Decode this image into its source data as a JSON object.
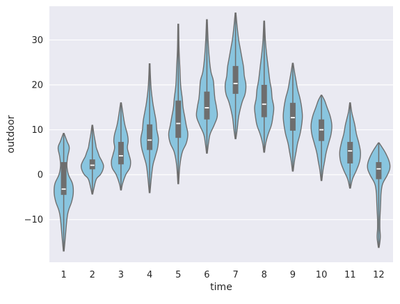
{
  "chart_data": {
    "type": "violin",
    "xlabel": "time",
    "ylabel": "outdoor",
    "categories": [
      "1",
      "2",
      "3",
      "4",
      "5",
      "6",
      "7",
      "8",
      "9",
      "10",
      "11",
      "12"
    ],
    "ylim": [
      -19.5,
      37.5
    ],
    "yticks": [
      -10,
      0,
      10,
      20,
      30
    ],
    "grid": true,
    "colors": {
      "background": "#eaeaf2",
      "grid": "#ffffff",
      "violin_fill": "#89c5df",
      "violin_edge": "#6e6e6e",
      "box": "#6e6e6e",
      "median": "#ffffff"
    },
    "series": [
      {
        "category": "1",
        "min": -17,
        "q1": -4.5,
        "median": -3.2,
        "q3": 2.8,
        "max": 9.2,
        "profile": [
          [
            -17,
            0.5
          ],
          [
            -14,
            2
          ],
          [
            -10,
            4
          ],
          [
            -8,
            6
          ],
          [
            -6,
            10
          ],
          [
            -4,
            12
          ],
          [
            -2,
            11
          ],
          [
            0,
            6
          ],
          [
            2,
            4
          ],
          [
            4,
            5
          ],
          [
            6,
            7
          ],
          [
            7.5,
            4
          ],
          [
            9.2,
            0.5
          ]
        ]
      },
      {
        "category": "2",
        "min": -4.3,
        "q1": 1.2,
        "median": 2.1,
        "q3": 3.4,
        "max": 11,
        "profile": [
          [
            -4.3,
            0.5
          ],
          [
            -3,
            2
          ],
          [
            -1,
            5
          ],
          [
            0,
            10
          ],
          [
            1,
            13
          ],
          [
            2,
            14
          ],
          [
            3,
            12
          ],
          [
            4,
            9
          ],
          [
            5,
            7
          ],
          [
            6,
            5
          ],
          [
            7,
            4
          ],
          [
            9,
            2
          ],
          [
            11,
            0.5
          ]
        ]
      },
      {
        "category": "3",
        "min": -3.4,
        "q1": 2.3,
        "median": 4.2,
        "q3": 7.3,
        "max": 16,
        "profile": [
          [
            -3.4,
            0.5
          ],
          [
            -2,
            2
          ],
          [
            0,
            6
          ],
          [
            1.5,
            11
          ],
          [
            3,
            12
          ],
          [
            4.5,
            10
          ],
          [
            6,
            8
          ],
          [
            7.5,
            9
          ],
          [
            9,
            8
          ],
          [
            11,
            5
          ],
          [
            13,
            3
          ],
          [
            16,
            0.5
          ]
        ]
      },
      {
        "category": "4",
        "min": -4,
        "q1": 5.5,
        "median": 7.7,
        "q3": 11.2,
        "max": 24.7,
        "profile": [
          [
            -4,
            0.5
          ],
          [
            -1,
            2
          ],
          [
            2,
            4
          ],
          [
            4,
            7
          ],
          [
            6,
            10
          ],
          [
            8,
            11
          ],
          [
            10,
            9
          ],
          [
            12,
            8
          ],
          [
            14,
            6
          ],
          [
            16,
            4
          ],
          [
            19,
            2
          ],
          [
            22,
            1
          ],
          [
            24.7,
            0.5
          ]
        ]
      },
      {
        "category": "5",
        "min": -2,
        "q1": 8.2,
        "median": 11.4,
        "q3": 16.5,
        "max": 33.5,
        "profile": [
          [
            -2,
            0.5
          ],
          [
            2,
            2
          ],
          [
            5,
            5
          ],
          [
            7,
            10
          ],
          [
            9,
            12
          ],
          [
            11,
            10
          ],
          [
            13,
            8
          ],
          [
            15,
            6
          ],
          [
            17,
            5
          ],
          [
            20,
            3
          ],
          [
            24,
            2
          ],
          [
            28,
            1
          ],
          [
            33.5,
            0.5
          ]
        ]
      },
      {
        "category": "6",
        "min": 4.8,
        "q1": 12.3,
        "median": 14.9,
        "q3": 18.5,
        "max": 34.5,
        "profile": [
          [
            4.8,
            0.5
          ],
          [
            7,
            2
          ],
          [
            9,
            4
          ],
          [
            11,
            9
          ],
          [
            13,
            13
          ],
          [
            15,
            12
          ],
          [
            17,
            10
          ],
          [
            19,
            9
          ],
          [
            21,
            8
          ],
          [
            23,
            5
          ],
          [
            26,
            3
          ],
          [
            30,
            1.5
          ],
          [
            34.5,
            0.5
          ]
        ]
      },
      {
        "category": "7",
        "min": 8,
        "q1": 18,
        "median": 20.3,
        "q3": 24.2,
        "max": 36,
        "profile": [
          [
            8,
            0.5
          ],
          [
            10,
            2
          ],
          [
            13,
            4
          ],
          [
            16,
            8
          ],
          [
            18,
            12
          ],
          [
            20,
            13
          ],
          [
            22,
            11
          ],
          [
            24,
            10
          ],
          [
            26,
            8
          ],
          [
            28,
            6
          ],
          [
            30,
            4
          ],
          [
            33,
            2
          ],
          [
            36,
            0.5
          ]
        ]
      },
      {
        "category": "8",
        "min": 5,
        "q1": 12.8,
        "median": 15.7,
        "q3": 20,
        "max": 34.2,
        "profile": [
          [
            5,
            0.5
          ],
          [
            7,
            2
          ],
          [
            9,
            5
          ],
          [
            11,
            9
          ],
          [
            13,
            11
          ],
          [
            15,
            12
          ],
          [
            17,
            10
          ],
          [
            19,
            9
          ],
          [
            21,
            7
          ],
          [
            24,
            5
          ],
          [
            27,
            3
          ],
          [
            30,
            1.5
          ],
          [
            34.2,
            0.5
          ]
        ]
      },
      {
        "category": "9",
        "min": 0.8,
        "q1": 9.8,
        "median": 12.7,
        "q3": 16,
        "max": 24.8,
        "profile": [
          [
            0.8,
            0.5
          ],
          [
            3,
            2
          ],
          [
            5,
            4
          ],
          [
            7,
            6
          ],
          [
            9,
            9
          ],
          [
            11,
            11
          ],
          [
            13,
            12
          ],
          [
            15,
            11
          ],
          [
            17,
            9
          ],
          [
            19,
            6
          ],
          [
            21,
            4
          ],
          [
            23,
            2
          ],
          [
            24.8,
            0.5
          ]
        ]
      },
      {
        "category": "10",
        "min": -1.3,
        "q1": 7.5,
        "median": 10,
        "q3": 12.3,
        "max": 17.7,
        "profile": [
          [
            -1.3,
            0.5
          ],
          [
            1,
            2
          ],
          [
            3,
            4
          ],
          [
            5,
            6
          ],
          [
            7,
            9
          ],
          [
            9,
            12
          ],
          [
            11,
            13
          ],
          [
            13,
            11
          ],
          [
            15,
            7
          ],
          [
            16.5,
            4
          ],
          [
            17.7,
            0.5
          ]
        ]
      },
      {
        "category": "11",
        "min": -3,
        "q1": 2.5,
        "median": 5.3,
        "q3": 7.3,
        "max": 16,
        "profile": [
          [
            -3,
            0.5
          ],
          [
            -1,
            3
          ],
          [
            1,
            8
          ],
          [
            3,
            12
          ],
          [
            5,
            13
          ],
          [
            7,
            11
          ],
          [
            9,
            8
          ],
          [
            11,
            6
          ],
          [
            12.5,
            4
          ],
          [
            14,
            2
          ],
          [
            16,
            0.5
          ]
        ]
      },
      {
        "category": "12",
        "min": -16.2,
        "q1": -1,
        "median": 1.3,
        "q3": 2.8,
        "max": 7.1,
        "profile": [
          [
            -16.2,
            0.5
          ],
          [
            -14,
            2
          ],
          [
            -12,
            1.5
          ],
          [
            -10,
            1.5
          ],
          [
            -8,
            2
          ],
          [
            -6,
            2.5
          ],
          [
            -4,
            3
          ],
          [
            -2,
            5
          ],
          [
            0,
            11
          ],
          [
            1.5,
            14
          ],
          [
            3,
            13
          ],
          [
            5,
            8
          ],
          [
            7.1,
            0.5
          ]
        ]
      }
    ]
  }
}
